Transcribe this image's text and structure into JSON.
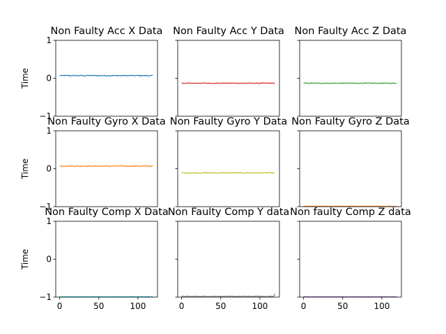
{
  "chart_data": {
    "type": "line",
    "layout": "3x3 grid",
    "shared_x_axis": true,
    "shared_y_axis": true,
    "xlim": [
      -5,
      125
    ],
    "ylim": [
      -1,
      1
    ],
    "x_ticks": [
      0,
      50,
      100
    ],
    "y_ticks": [
      -1,
      0,
      1
    ],
    "y_tick_labels": [
      "−1",
      "0",
      "1"
    ],
    "ylabel": "Time",
    "n_points": 120,
    "panels": [
      {
        "title": "Non Faulty Acc X Data",
        "color": "#1f77b4",
        "mean": 0.07,
        "noise": 0.012,
        "end_spike": 0
      },
      {
        "title": "Non Faulty Acc Y Data",
        "color": "#d62728",
        "mean": -0.13,
        "noise": 0.01,
        "end_spike": 0
      },
      {
        "title": "Non Faulty Acc Z Data",
        "color": "#2ca02c",
        "mean": -0.13,
        "noise": 0.01,
        "end_spike": 0
      },
      {
        "title": "Non Faulty Gyro X Data",
        "color": "#ff7f0e",
        "mean": 0.07,
        "noise": 0.012,
        "end_spike": 0
      },
      {
        "title": "Non Faulty Gyro Y Data",
        "color": "#bcbd22",
        "mean": -0.11,
        "noise": 0.01,
        "end_spike": 0
      },
      {
        "title": "Non Faulty Gyro Z Data",
        "color": "#ff7f0e",
        "mean": -0.99,
        "noise": 0.004,
        "end_spike": 0
      },
      {
        "title": "Non Faulty Comp X Data",
        "color": "#17becf",
        "mean": -0.99,
        "noise": 0.003,
        "end_spike": 0
      },
      {
        "title": "Non Faulty Comp Y data",
        "color": "#7f7f7f",
        "mean": -0.98,
        "noise": 0.008,
        "end_spike": 0.07
      },
      {
        "title": "Non faulty Comp Z data",
        "color": "#9467bd",
        "mean": -0.99,
        "noise": 0.003,
        "end_spike": 0
      }
    ]
  }
}
